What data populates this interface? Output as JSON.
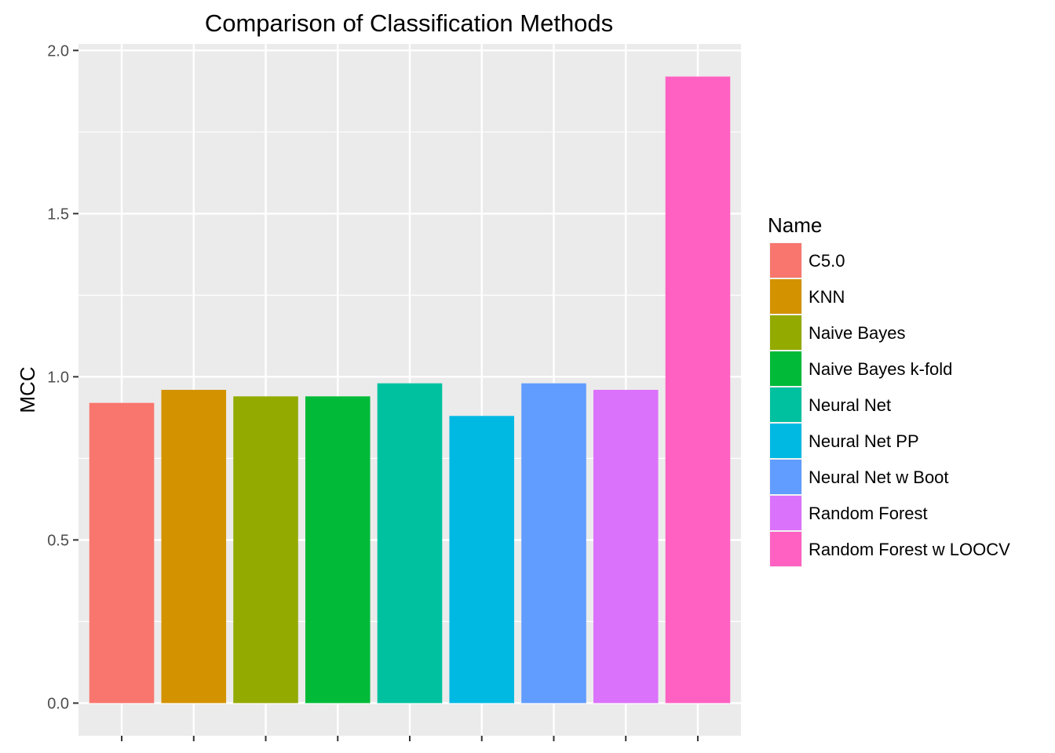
{
  "chart_data": {
    "type": "bar",
    "title": "Comparison of Classification Methods",
    "xlabel": "",
    "ylabel": "MCC",
    "ylim": [
      -0.1,
      2.02
    ],
    "yticks": [
      0.0,
      0.5,
      1.0,
      1.5,
      2.0
    ],
    "ytick_labels": [
      "0.0",
      "0.5",
      "1.0",
      "1.5",
      "2.0"
    ],
    "grid": true,
    "legend": {
      "title": "Name",
      "position": "right"
    },
    "categories": [
      "C5.0",
      "KNN",
      "Naive Bayes",
      "Naive Bayes k-fold",
      "Neural Net",
      "Neural Net PP",
      "Neural Net w Boot",
      "Random Forest",
      "Random Forest w LOOCV"
    ],
    "values": [
      0.92,
      0.96,
      0.94,
      0.94,
      0.98,
      0.88,
      0.98,
      0.96,
      1.92
    ],
    "colors": [
      "#F8766D",
      "#D39200",
      "#93AA00",
      "#00BA38",
      "#00C19F",
      "#00B9E3",
      "#619CFF",
      "#DB72FB",
      "#FF61C3"
    ],
    "panel_color": "#EBEBEB",
    "grid_color": "#FFFFFF"
  }
}
